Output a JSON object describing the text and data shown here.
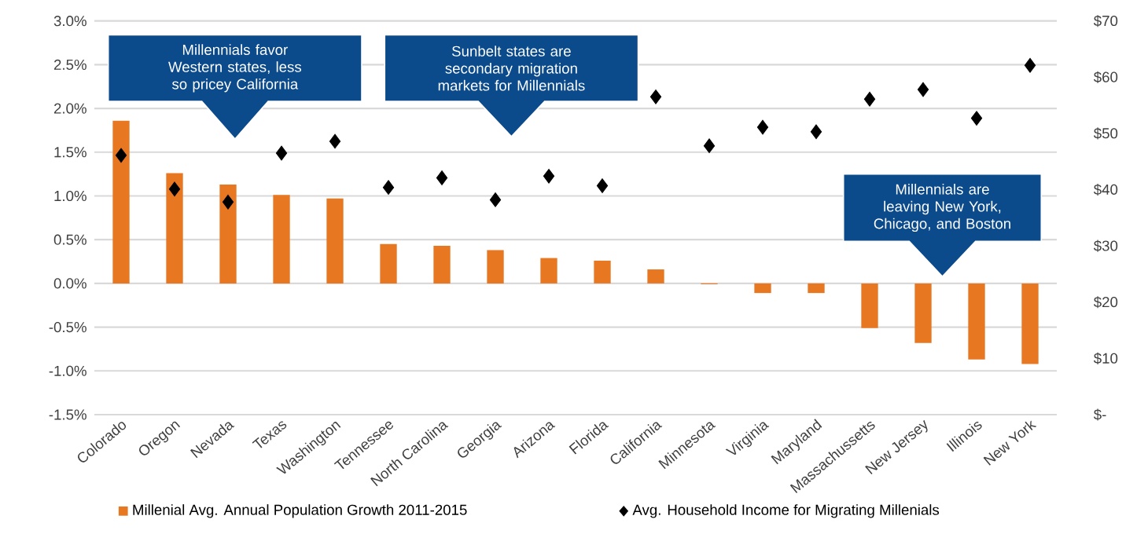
{
  "chart_data": {
    "type": "bar",
    "categories": [
      "Colorado",
      "Oregon",
      "Nevada",
      "Texas",
      "Washington",
      "Tennessee",
      "North Carolina",
      "Georgia",
      "Arizona",
      "Florida",
      "California",
      "Minnesota",
      "Virginia",
      "Maryland",
      "Massachussetts",
      "New Jersey",
      "Illinois",
      "New York"
    ],
    "series": [
      {
        "name": "Millenial Avg. Annual Population Growth 2011-2015",
        "color": "#e87722",
        "values": [
          1.86,
          1.26,
          1.13,
          1.01,
          0.97,
          0.45,
          0.43,
          0.38,
          0.29,
          0.26,
          0.16,
          -0.01,
          -0.11,
          -0.11,
          -0.51,
          -0.68,
          -0.87,
          -0.92
        ]
      },
      {
        "name": "Avg. Household Income for Migrating Millenials",
        "type": "scatter",
        "axis": "y2",
        "color": "#000000",
        "values": [
          46.1,
          40.1,
          37.8,
          46.5,
          48.6,
          40.4,
          42.1,
          38.2,
          42.4,
          40.7,
          56.5,
          47.8,
          51.1,
          50.3,
          56.1,
          57.8,
          52.7,
          62.1
        ]
      }
    ],
    "marker": "diamond",
    "ylim": [
      -1.5,
      3.0
    ],
    "yticks": [
      {
        "value": -1.5,
        "label": "-1.5%"
      },
      {
        "value": -1.0,
        "label": "-1.0%"
      },
      {
        "value": -0.5,
        "label": "-0.5%"
      },
      {
        "value": 0.0,
        "label": "0.0%"
      },
      {
        "value": 0.5,
        "label": "0.5%"
      },
      {
        "value": 1.0,
        "label": "1.0%"
      },
      {
        "value": 1.5,
        "label": "1.5%"
      },
      {
        "value": 2.0,
        "label": "2.0%"
      },
      {
        "value": 2.5,
        "label": "2.5%"
      },
      {
        "value": 3.0,
        "label": "3.0%"
      }
    ],
    "y2lim": [
      0,
      70
    ],
    "y2ticks": [
      {
        "value": 0,
        "label": "$-"
      },
      {
        "value": 10,
        "label": "$10"
      },
      {
        "value": 20,
        "label": "$20"
      },
      {
        "value": 30,
        "label": "$30"
      },
      {
        "value": 40,
        "label": "$40"
      },
      {
        "value": 50,
        "label": "$50"
      },
      {
        "value": 60,
        "label": "$60"
      },
      {
        "value": 70,
        "label": "$70"
      }
    ],
    "grid": "y",
    "legend": "bottom",
    "annotations": [
      "Millennials favor Western states, less so pricey California",
      "Sunbelt states are secondary migration markets for Millennials",
      "Millennials are leaving New York, Chicago, and Boston"
    ]
  }
}
